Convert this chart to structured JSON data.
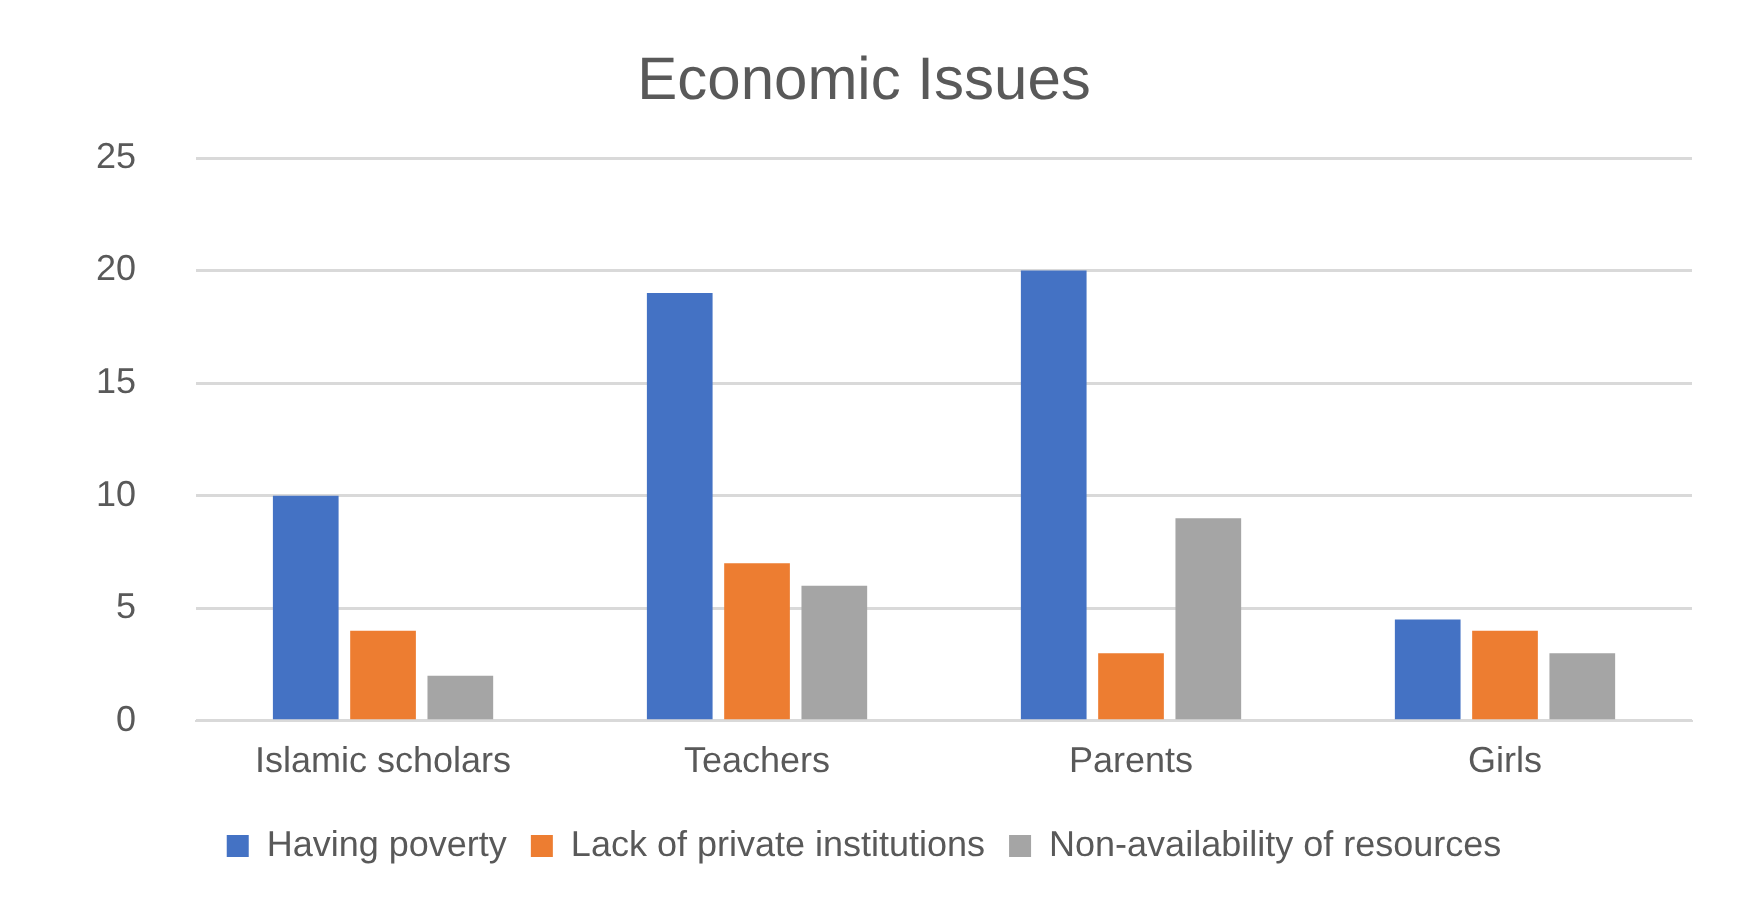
{
  "chart_data": {
    "type": "bar",
    "title": "Economic Issues",
    "categories": [
      "Islamic scholars",
      "Teachers",
      "Parents",
      "Girls"
    ],
    "series": [
      {
        "name": "Having poverty",
        "color": "#4472c4",
        "values": [
          10,
          19,
          20,
          4.5
        ]
      },
      {
        "name": "Lack of private institutions",
        "color": "#ed7d31",
        "values": [
          4,
          7,
          3,
          4
        ]
      },
      {
        "name": "Non-availability of resources",
        "color": "#a5a5a5",
        "values": [
          2,
          6,
          9,
          3
        ]
      }
    ],
    "ylim": [
      0,
      25
    ],
    "yticks": [
      0,
      5,
      10,
      15,
      20,
      25
    ],
    "grid": "y",
    "legend": "bottom"
  }
}
